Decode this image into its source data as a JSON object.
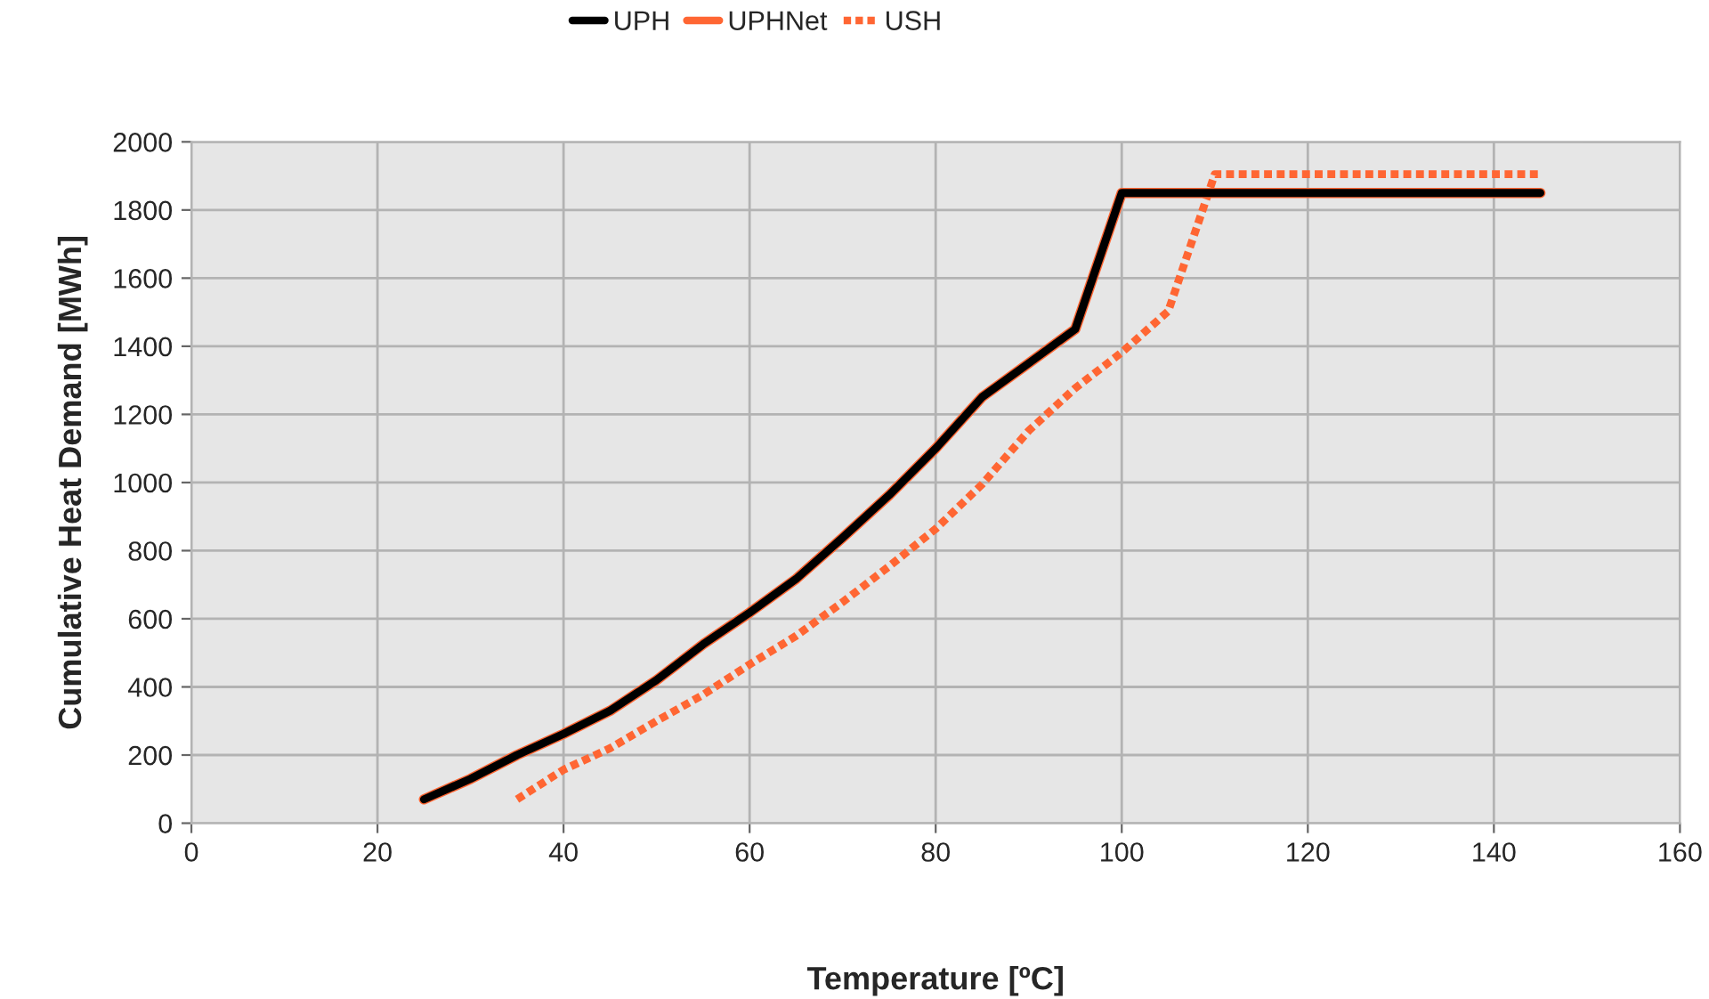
{
  "chart_data": {
    "type": "line",
    "xlabel": "Temperature [ºC]",
    "ylabel": "Cumulative Heat Demand [MWh]",
    "xlim": [
      0,
      160
    ],
    "xticks": [
      0,
      20,
      40,
      60,
      80,
      100,
      120,
      140,
      160
    ],
    "ylim": [
      0,
      2000
    ],
    "yticks": [
      0,
      200,
      400,
      600,
      800,
      1000,
      1200,
      1400,
      1600,
      1800,
      2000
    ],
    "grid": true,
    "legend": "top",
    "marker": "none",
    "series": [
      {
        "name": "UPH",
        "color": "#000000",
        "line_style": "solid",
        "x": [
          25,
          30,
          35,
          40,
          45,
          50,
          55,
          60,
          65,
          70,
          75,
          80,
          85,
          90,
          95,
          100,
          145
        ],
        "values": [
          70,
          130,
          200,
          262,
          330,
          420,
          525,
          618,
          717,
          838,
          963,
          1100,
          1251,
          1350,
          1450,
          1850,
          1850
        ]
      },
      {
        "name": "UPHNet",
        "color": "#ff6633",
        "line_style": "solid",
        "x": [
          25,
          30,
          35,
          40,
          45,
          50,
          55,
          60,
          65,
          70,
          75,
          80,
          85,
          90,
          95,
          100,
          145
        ],
        "values": [
          70,
          130,
          200,
          262,
          330,
          420,
          525,
          618,
          717,
          838,
          963,
          1100,
          1251,
          1350,
          1450,
          1850,
          1850
        ]
      },
      {
        "name": "USH",
        "color": "#ff6633",
        "line_style": "dotted",
        "x": [
          35,
          40,
          45,
          50,
          55,
          60,
          65,
          70,
          75,
          80,
          85,
          90,
          95,
          100,
          105,
          110,
          145
        ],
        "values": [
          70,
          157,
          220,
          300,
          377,
          466,
          550,
          649,
          754,
          864,
          995,
          1152,
          1277,
          1382,
          1503,
          1905,
          1905
        ]
      }
    ]
  }
}
